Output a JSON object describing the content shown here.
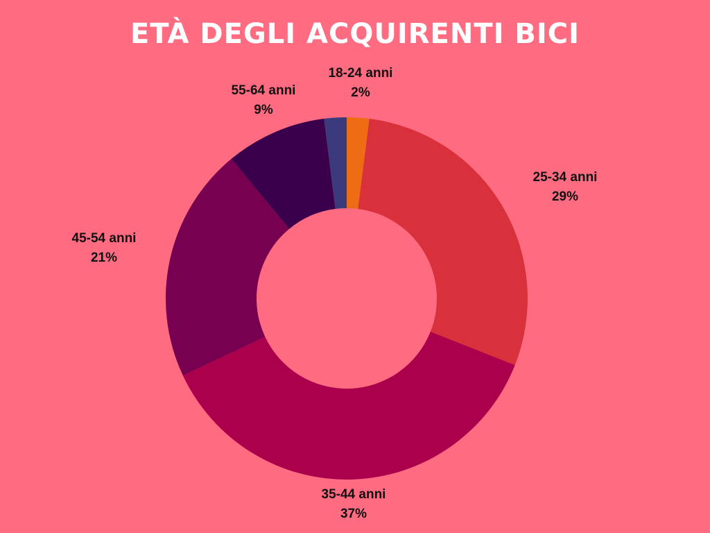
{
  "title": "ETÀ DEGLI ACQUIRENTI BICI",
  "colors": {
    "background": "#ff6b81",
    "title": "#ffffff"
  },
  "chart_data": {
    "type": "pie",
    "donut": true,
    "legend": "none",
    "slices": [
      {
        "label": "18-24 anni",
        "value_label": "2%",
        "value": 2,
        "color": "#ee6c14"
      },
      {
        "label": "25-34 anni",
        "value_label": "29%",
        "value": 29,
        "color": "#d8313b"
      },
      {
        "label": "35-44 anni",
        "value_label": "37%",
        "value": 37,
        "color": "#ab004c"
      },
      {
        "label": "45-54 anni",
        "value_label": "21%",
        "value": 21,
        "color": "#770051"
      },
      {
        "label": "55-64 anni",
        "value_label": "9%",
        "value": 9,
        "color": "#3b004c"
      },
      {
        "label": "",
        "value_label": "",
        "value": 2,
        "color": "#3a3a7c"
      }
    ]
  }
}
